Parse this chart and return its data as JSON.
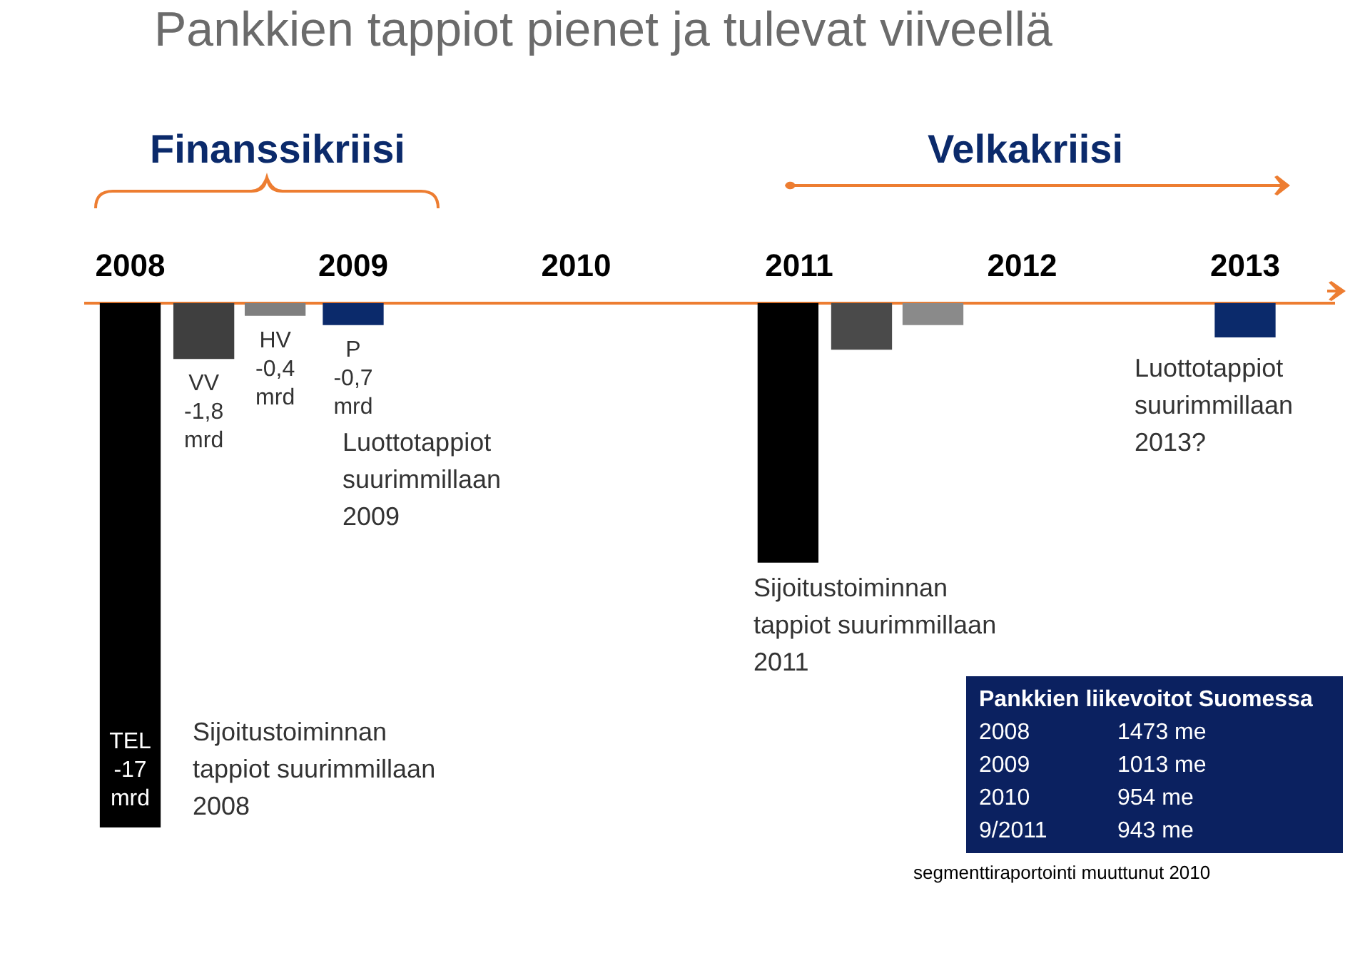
{
  "chart_data": {
    "type": "bar",
    "title": "Pankkien tappiot pienet ja tulevat viiveellä",
    "ylim": [
      -17,
      0
    ],
    "x": [
      2008,
      2008.33,
      2008.65,
      2009,
      2010.95,
      2011.28,
      2011.6,
      2013
    ],
    "values": [
      -17,
      -1.8,
      -0.4,
      -0.7,
      -8.4,
      -1.5,
      -0.7,
      -1.1
    ],
    "colors": [
      "#000000",
      "#3f3f3f",
      "#7f7f7f",
      "#0b2a6b",
      "#000000",
      "#4a4a4a",
      "#8a8a8a",
      "#0b2a6b"
    ],
    "value_labels": [
      "TEL\n-17\nmrd",
      "VV\n-1,8\nmrd",
      "HV\n-0,4\nmrd",
      "P\n-0,7\nmrd",
      null,
      null,
      null,
      null
    ],
    "xlim": [
      2007.8,
      2013.4
    ],
    "xticks": [
      2008,
      2009,
      2010,
      2011,
      2012,
      2013
    ],
    "legend": false,
    "annotations": [
      "Finanssikriisi",
      "Velkakriisi",
      "Luottotappiot\nsuurimmillaan\n2009",
      "Luottotappiot\nsuurimmillaan\n2013?",
      "Sijoitustoiminnan\ntappiot suurimmillaan\n2011",
      "Sijoitustoiminnan\ntappiot suurimmillaan\n2008",
      "Pankkien liikevoitot Suomessa",
      "2008",
      "1473 me",
      "2009",
      "1013 me",
      "2010",
      "954 me",
      "9/2011",
      "943 me",
      "segmenttiraportointi muuttunut 2010"
    ]
  }
}
